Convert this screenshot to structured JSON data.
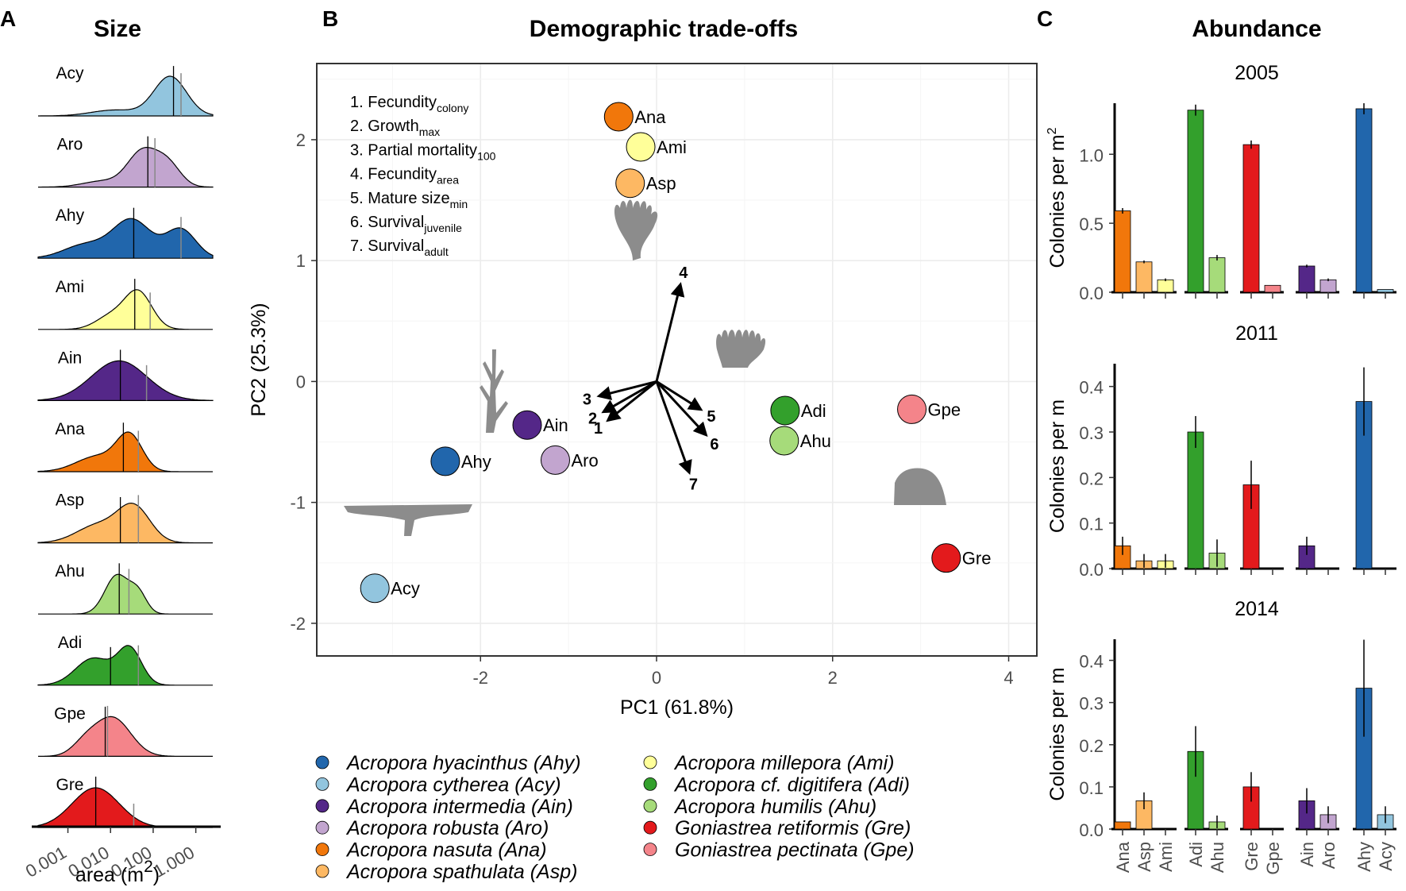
{
  "panels": {
    "a": {
      "letter": "A",
      "title": "Size"
    },
    "b": {
      "letter": "B",
      "title": "Demographic trade-offs"
    },
    "c": {
      "letter": "C",
      "title": "Abundance"
    }
  },
  "chart_data": [
    {
      "type": "area",
      "id": "size",
      "title": "Size",
      "xlabel": "area (m",
      "xlabel_sup": "2",
      "xlabel_close": ")",
      "x_scale": "log10",
      "xlim": [
        0.0002,
        2.5
      ],
      "x_ticks": [
        0.001,
        0.01,
        0.1,
        1.0
      ],
      "x_tick_labels": [
        "0.001",
        "0.010",
        "0.100",
        "1.000"
      ],
      "series": [
        {
          "name": "Acy",
          "color": "#92c5de",
          "median": 0.3,
          "mean": 0.45,
          "components": [
            {
              "mu": -0.6,
              "sd": 0.38,
              "w": 1.0
            },
            {
              "mu": -1.9,
              "sd": 0.55,
              "w": 0.15
            }
          ]
        },
        {
          "name": "Aro",
          "color": "#c2a5cf",
          "median": 0.075,
          "mean": 0.11,
          "components": [
            {
              "mu": -1.25,
              "sd": 0.35,
              "w": 0.9
            },
            {
              "mu": -0.65,
              "sd": 0.3,
              "w": 0.55
            },
            {
              "mu": -2.2,
              "sd": 0.45,
              "w": 0.15
            }
          ]
        },
        {
          "name": "Ahy",
          "color": "#2166ac",
          "median": 0.035,
          "mean": 0.45,
          "components": [
            {
              "mu": -1.5,
              "sd": 0.45,
              "w": 1.0
            },
            {
              "mu": -0.35,
              "sd": 0.35,
              "w": 0.75
            },
            {
              "mu": -2.6,
              "sd": 0.5,
              "w": 0.35
            }
          ]
        },
        {
          "name": "Ami",
          "color": "#ffff99",
          "median": 0.037,
          "mean": 0.085,
          "components": [
            {
              "mu": -1.35,
              "sd": 0.32,
              "w": 1.0
            },
            {
              "mu": -2.0,
              "sd": 0.35,
              "w": 0.35
            }
          ]
        },
        {
          "name": "Ain",
          "color": "#542788",
          "median": 0.017,
          "mean": 0.07,
          "components": [
            {
              "mu": -1.8,
              "sd": 0.65,
              "w": 1.0
            }
          ]
        },
        {
          "name": "Ana",
          "color": "#f1770b",
          "median": 0.02,
          "mean": 0.045,
          "components": [
            {
              "mu": -1.55,
              "sd": 0.3,
              "w": 1.0
            },
            {
              "mu": -2.3,
              "sd": 0.5,
              "w": 0.45
            }
          ]
        },
        {
          "name": "Asp",
          "color": "#fdb863",
          "median": 0.017,
          "mean": 0.045,
          "components": [
            {
              "mu": -1.45,
              "sd": 0.38,
              "w": 1.0
            },
            {
              "mu": -2.3,
              "sd": 0.5,
              "w": 0.5
            }
          ]
        },
        {
          "name": "Ahu",
          "color": "#a6db7a",
          "median": 0.016,
          "mean": 0.027,
          "components": [
            {
              "mu": -1.85,
              "sd": 0.28,
              "w": 1.0
            },
            {
              "mu": -1.35,
              "sd": 0.2,
              "w": 0.5
            }
          ]
        },
        {
          "name": "Adi",
          "color": "#33a02c",
          "median": 0.01,
          "mean": 0.045,
          "components": [
            {
              "mu": -2.4,
              "sd": 0.42,
              "w": 0.75
            },
            {
              "mu": -1.55,
              "sd": 0.28,
              "w": 1.0
            }
          ]
        },
        {
          "name": "Gpe",
          "color": "#f4848a",
          "median": 0.0075,
          "mean": 0.0085,
          "components": [
            {
              "mu": -1.95,
              "sd": 0.42,
              "w": 1.0
            },
            {
              "mu": -2.6,
              "sd": 0.3,
              "w": 0.3
            }
          ]
        },
        {
          "name": "Gre",
          "color": "#e31a1c",
          "median": 0.0045,
          "mean": 0.035,
          "components": [
            {
              "mu": -2.35,
              "sd": 0.55,
              "w": 1.0
            }
          ]
        }
      ]
    },
    {
      "type": "scatter",
      "id": "pca",
      "title": "Demographic trade-offs",
      "xlabel": "PC1 (61.8%)",
      "ylabel": "PC2 (25.3%)",
      "xlim": [
        -3.86,
        4.32
      ],
      "ylim": [
        -2.27,
        2.63
      ],
      "x_ticks": [
        -2,
        0,
        2,
        4
      ],
      "y_ticks": [
        -2,
        -1,
        0,
        1,
        2
      ],
      "grid": true,
      "points": [
        {
          "label": "Ana",
          "x": -0.43,
          "y": 2.19,
          "color": "#f1770b"
        },
        {
          "label": "Ami",
          "x": -0.18,
          "y": 1.94,
          "color": "#ffff99"
        },
        {
          "label": "Asp",
          "x": -0.3,
          "y": 1.64,
          "color": "#fdb863"
        },
        {
          "label": "Ain",
          "x": -1.47,
          "y": -0.36,
          "color": "#542788"
        },
        {
          "label": "Aro",
          "x": -1.15,
          "y": -0.65,
          "color": "#c2a5cf"
        },
        {
          "label": "Ahy",
          "x": -2.4,
          "y": -0.66,
          "color": "#2166ac"
        },
        {
          "label": "Acy",
          "x": -3.2,
          "y": -1.71,
          "color": "#92c5de"
        },
        {
          "label": "Adi",
          "x": 1.46,
          "y": -0.24,
          "color": "#33a02c"
        },
        {
          "label": "Ahu",
          "x": 1.45,
          "y": -0.49,
          "color": "#a6db7a"
        },
        {
          "label": "Gpe",
          "x": 2.9,
          "y": -0.23,
          "color": "#f4848a"
        },
        {
          "label": "Gre",
          "x": 3.29,
          "y": -1.46,
          "color": "#e31a1c"
        }
      ],
      "loadings": [
        {
          "label": "1",
          "x": -0.55,
          "y": -0.32
        },
        {
          "label": "2",
          "x": -0.6,
          "y": -0.25
        },
        {
          "label": "3",
          "x": -0.65,
          "y": -0.12
        },
        {
          "label": "4",
          "x": 0.27,
          "y": 0.8
        },
        {
          "label": "5",
          "x": 0.5,
          "y": -0.23
        },
        {
          "label": "6",
          "x": 0.56,
          "y": -0.44
        },
        {
          "label": "7",
          "x": 0.37,
          "y": -0.75
        }
      ],
      "loading_legend": [
        {
          "num": "1.",
          "main": "Fecundity",
          "sub": "colony"
        },
        {
          "num": "2.",
          "main": "Growth",
          "sub": "max"
        },
        {
          "num": "3.",
          "main": "Partial mortality",
          "sub": "100"
        },
        {
          "num": "4.",
          "main": "Fecundity",
          "sub": "area"
        },
        {
          "num": "5.",
          "main": "Mature size",
          "sub": "min"
        },
        {
          "num": "6.",
          "main": "Survival",
          "sub": "juvenile"
        },
        {
          "num": "7.",
          "main": "Survival",
          "sub": "adult"
        }
      ],
      "legend": [
        {
          "label": "Acropora hyacinthus (Ahy)",
          "color": "#2166ac"
        },
        {
          "label": "Acropora cytherea (Acy)",
          "color": "#92c5de"
        },
        {
          "label": "Acropora intermedia (Ain)",
          "color": "#542788"
        },
        {
          "label": "Acropora robusta (Aro)",
          "color": "#c2a5cf"
        },
        {
          "label": "Acropora nasuta (Ana)",
          "color": "#f1770b"
        },
        {
          "label": "Acropora spathulata (Asp)",
          "color": "#fdb863"
        },
        {
          "label": "Acropora millepora (Ami)",
          "color": "#ffff99"
        },
        {
          "label": "Acropora cf. digitifera (Adi)",
          "color": "#33a02c"
        },
        {
          "label": "Acropora humilis (Ahu)",
          "color": "#a6db7a"
        },
        {
          "label": "Goniastrea retiformis (Gre)",
          "color": "#e31a1c"
        },
        {
          "label": "Goniastrea pectinata (Gpe)",
          "color": "#f4848a"
        }
      ]
    },
    {
      "type": "bar",
      "id": "abundance",
      "title": "Abundance",
      "categories": [
        "Ana",
        "Asp",
        "Ami",
        "Adi",
        "Ahu",
        "Gre",
        "Gpe",
        "Ain",
        "Aro",
        "Ahy",
        "Acy"
      ],
      "groups": [
        [
          0,
          1,
          2
        ],
        [
          3,
          4
        ],
        [
          5,
          6
        ],
        [
          7,
          8
        ],
        [
          9,
          10
        ]
      ],
      "colors": [
        "#f1770b",
        "#fdb863",
        "#ffff99",
        "#33a02c",
        "#a6db7a",
        "#e31a1c",
        "#f4848a",
        "#542788",
        "#c2a5cf",
        "#2166ac",
        "#92c5de"
      ],
      "panels": [
        {
          "year": "2005",
          "ylabel": "Colonies per m",
          "ylabel_sup": "2",
          "ylim": [
            0,
            1.37
          ],
          "y_ticks": [
            0.0,
            0.5,
            1.0
          ],
          "y_tick_labels": [
            "0.0",
            "0.5",
            "1.0"
          ],
          "values": [
            0.59,
            0.22,
            0.09,
            1.32,
            0.25,
            1.07,
            0.05,
            0.19,
            0.09,
            1.33,
            0.02
          ],
          "errors": [
            0.02,
            0.01,
            0.01,
            0.04,
            0.02,
            0.03,
            0.0,
            0.01,
            0.01,
            0.04,
            0.0
          ]
        },
        {
          "year": "2011",
          "ylabel": "Colonies per m",
          "ylabel_sup": "",
          "ylim": [
            0,
            0.45
          ],
          "y_ticks": [
            0.0,
            0.1,
            0.2,
            0.3,
            0.4
          ],
          "y_tick_labels": [
            "0.0",
            "0.1",
            "0.2",
            "0.3",
            "0.4"
          ],
          "values": [
            0.05,
            0.017,
            0.017,
            0.3,
            0.034,
            0.184,
            0.0,
            0.05,
            0.0,
            0.367,
            0.0
          ],
          "errors": [
            0.02,
            0.015,
            0.015,
            0.035,
            0.03,
            0.053,
            0.0,
            0.02,
            0.0,
            0.075,
            0.0
          ]
        },
        {
          "year": "2014",
          "ylabel": "Colonies per m",
          "ylabel_sup": "",
          "ylim": [
            0,
            0.45
          ],
          "y_ticks": [
            0.0,
            0.1,
            0.2,
            0.3,
            0.4
          ],
          "y_tick_labels": [
            "0.0",
            "0.1",
            "0.2",
            "0.3",
            "0.4"
          ],
          "values": [
            0.017,
            0.067,
            0.0,
            0.184,
            0.017,
            0.1,
            0.0,
            0.067,
            0.034,
            0.334,
            0.034
          ],
          "errors": [
            0.0,
            0.02,
            0.0,
            0.06,
            0.015,
            0.035,
            0.0,
            0.03,
            0.02,
            0.115,
            0.02
          ]
        }
      ]
    }
  ]
}
